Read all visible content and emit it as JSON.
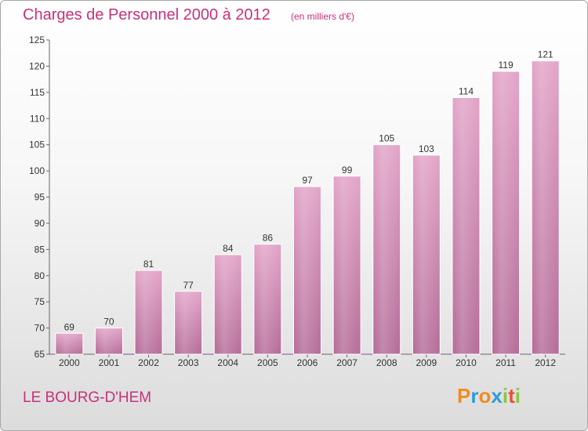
{
  "header": {
    "title": "Charges de Personnel 2000 à 2012",
    "subtitle": "(en milliers d'€)"
  },
  "footer": {
    "location": "LE BOURG-D'HEM",
    "logo_letters": [
      "P",
      "r",
      "o",
      "x",
      "i",
      "t",
      "i"
    ],
    "logo_colors": [
      "#f08c1e",
      "#2e9cd8",
      "#f08c1e",
      "#2e9cd8",
      "#8cc63f",
      "#e8503a",
      "#8cc63f"
    ]
  },
  "colors": {
    "accent": "#c7317a",
    "bar_light": "#e2a4c8",
    "bar_dark": "#b56c98",
    "bar_edge": "#ffffff",
    "grid": "#bbbbbb"
  },
  "chart_data": {
    "type": "bar",
    "title": "Charges de Personnel 2000 à 2012",
    "subtitle": "(en milliers d'€)",
    "xlabel": "",
    "ylabel": "",
    "categories": [
      "2000",
      "2001",
      "2002",
      "2003",
      "2004",
      "2005",
      "2006",
      "2007",
      "2008",
      "2009",
      "2010",
      "2011",
      "2012"
    ],
    "values": [
      69,
      70,
      81,
      77,
      84,
      86,
      97,
      99,
      105,
      103,
      114,
      119,
      121
    ],
    "ylim": [
      65,
      125
    ],
    "yticks": [
      65,
      70,
      75,
      80,
      85,
      90,
      95,
      100,
      105,
      110,
      115,
      120,
      125
    ],
    "grid": false
  }
}
